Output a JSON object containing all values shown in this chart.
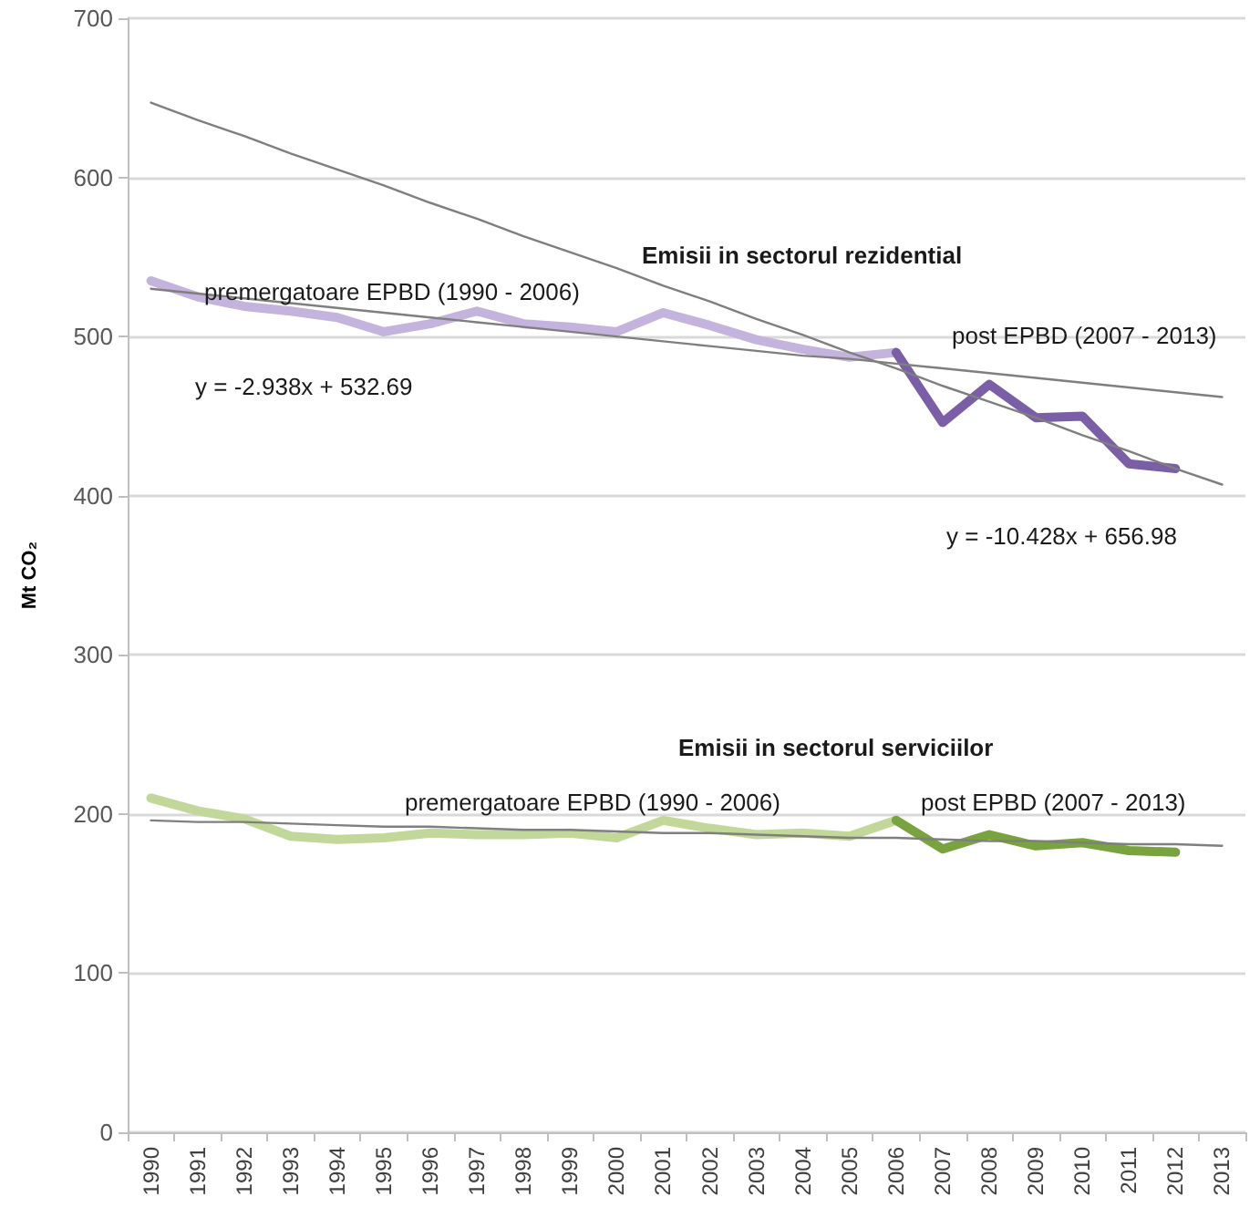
{
  "chart_data": {
    "type": "line",
    "ylabel": "Mt CO₂",
    "categories": [
      "1990",
      "1991",
      "1992",
      "1993",
      "1994",
      "1995",
      "1996",
      "1997",
      "1998",
      "1999",
      "2000",
      "2001",
      "2002",
      "2003",
      "2004",
      "2005",
      "2006",
      "2007",
      "2008",
      "2009",
      "2010",
      "2011",
      "2012",
      "2013"
    ],
    "series": [
      {
        "color": "#c4b3dc",
        "values": [
          535,
          525,
          519,
          516,
          512,
          503,
          508,
          516,
          508,
          506,
          503,
          515,
          507,
          498,
          492,
          487,
          490,
          null,
          null,
          null,
          null,
          null,
          null,
          null
        ]
      },
      {
        "color": "#7a5fa6",
        "values": [
          null,
          null,
          null,
          null,
          null,
          null,
          null,
          null,
          null,
          null,
          null,
          null,
          null,
          null,
          null,
          null,
          490,
          446,
          470,
          449,
          450,
          420,
          417,
          null
        ]
      },
      {
        "color": "#c2d89a",
        "values": [
          210,
          202,
          197,
          186,
          184,
          185,
          188,
          187,
          187,
          188,
          185,
          196,
          191,
          187,
          188,
          186,
          196,
          null,
          null,
          null,
          null,
          null,
          null,
          null
        ]
      },
      {
        "color": "#79a33e",
        "values": [
          null,
          null,
          null,
          null,
          null,
          null,
          null,
          null,
          null,
          null,
          null,
          null,
          null,
          null,
          null,
          null,
          196,
          178,
          187,
          180,
          182,
          177,
          176,
          null
        ]
      },
      {
        "color": "#7f7f7f",
        "values": [
          530,
          527,
          524,
          521,
          518,
          515,
          512,
          509,
          506,
          503,
          500,
          497,
          494,
          491,
          488,
          486,
          483,
          480,
          477,
          474,
          471,
          468,
          465,
          462
        ]
      },
      {
        "color": "#7f7f7f",
        "values": [
          647,
          636,
          626,
          615,
          605,
          595,
          584,
          574,
          563,
          553,
          543,
          532,
          522,
          511,
          501,
          490,
          480,
          469,
          459,
          449,
          438,
          428,
          417,
          407
        ]
      },
      {
        "color": "#7f7f7f",
        "values": [
          196,
          195,
          195,
          194,
          193,
          192,
          192,
          191,
          190,
          190,
          189,
          188,
          188,
          187,
          186,
          185,
          185,
          184,
          183,
          183,
          182,
          181,
          181,
          180
        ]
      }
    ],
    "ylim": [
      0,
      700
    ],
    "yticks": [
      0,
      100,
      200,
      300,
      400,
      500,
      600,
      700
    ],
    "grid": "y",
    "marker": "none",
    "line_style": "solid",
    "annotations": [
      "Emisii in sectorul rezidential",
      "premergatoare EPBD (1990 - 2006)",
      "y = -2.938x + 532.69",
      "post EPBD (2007 - 2013)",
      "y = -10.428x + 656.98",
      "Emisii in sectorul serviciilor",
      "premergatoare EPBD (1990 - 2006)",
      "post EPBD (2007 - 2013)"
    ]
  }
}
